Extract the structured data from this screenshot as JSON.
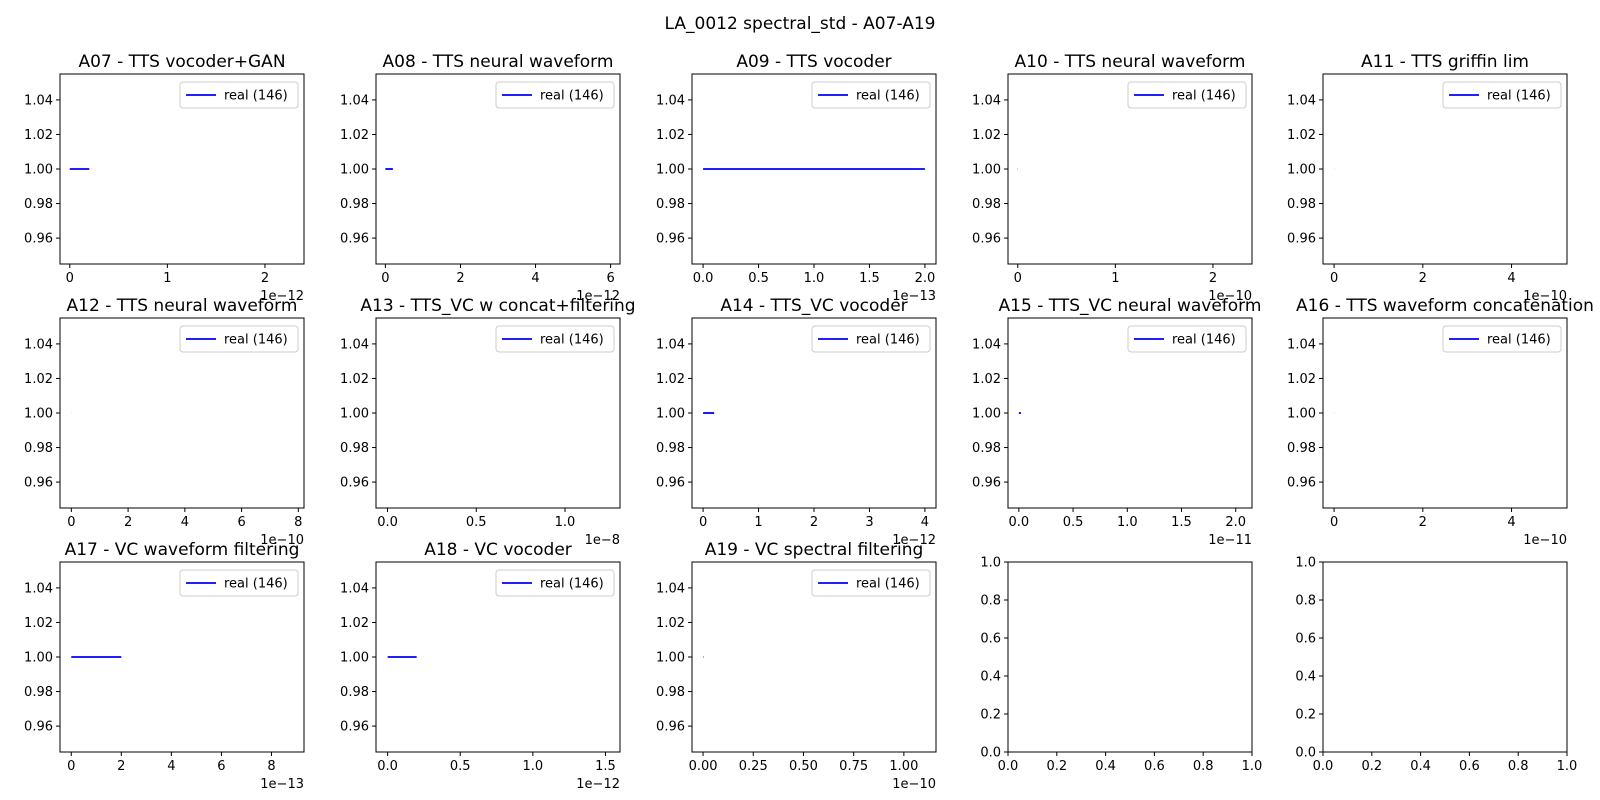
{
  "suptitle": "LA_0012 spectral_std - A07-A19",
  "colors": {
    "series": "#0000ff",
    "axis": "#000000",
    "legend_border": "#cccccc"
  },
  "chart_data": [
    {
      "type": "line",
      "title": "A07 - TTS vocoder+GAN",
      "legend": "real (146)",
      "series": [
        {
          "name": "real (146)",
          "x": [
            0,
            2e-13
          ],
          "y": [
            1.0,
            1.0
          ]
        }
      ],
      "xlim": [
        -1e-13,
        2.4e-12
      ],
      "ylim": [
        0.945,
        1.055
      ],
      "xticks": [
        0,
        1,
        2
      ],
      "xtick_labels": [
        "0",
        "1",
        "2"
      ],
      "xscale": 1e-12,
      "offset_label": "1e−12",
      "yticks": [
        0.96,
        0.98,
        1.0,
        1.02,
        1.04
      ],
      "ytick_labels": [
        "0.96",
        "0.98",
        "1.00",
        "1.02",
        "1.04"
      ]
    },
    {
      "type": "line",
      "title": "A08 - TTS neural waveform",
      "legend": "real (146)",
      "series": [
        {
          "name": "real (146)",
          "x": [
            0,
            2e-13
          ],
          "y": [
            1.0,
            1.0
          ]
        }
      ],
      "xlim": [
        -2.5e-13,
        6.25e-12
      ],
      "ylim": [
        0.945,
        1.055
      ],
      "xticks": [
        0,
        2,
        4,
        6
      ],
      "xtick_labels": [
        "0",
        "2",
        "4",
        "6"
      ],
      "xscale": 1e-12,
      "offset_label": "1e−12",
      "yticks": [
        0.96,
        0.98,
        1.0,
        1.02,
        1.04
      ],
      "ytick_labels": [
        "0.96",
        "0.98",
        "1.00",
        "1.02",
        "1.04"
      ]
    },
    {
      "type": "line",
      "title": "A09 - TTS vocoder",
      "legend": "real (146)",
      "series": [
        {
          "name": "real (146)",
          "x": [
            0,
            2e-13
          ],
          "y": [
            1.0,
            1.0
          ]
        }
      ],
      "xlim": [
        -1e-14,
        2.1e-13
      ],
      "ylim": [
        0.945,
        1.055
      ],
      "xticks": [
        0,
        0.5,
        1,
        1.5,
        2
      ],
      "xtick_labels": [
        "0.0",
        "0.5",
        "1.0",
        "1.5",
        "2.0"
      ],
      "xscale": 1e-13,
      "offset_label": "1e−13",
      "yticks": [
        0.96,
        0.98,
        1.0,
        1.02,
        1.04
      ],
      "ytick_labels": [
        "0.96",
        "0.98",
        "1.00",
        "1.02",
        "1.04"
      ]
    },
    {
      "type": "line",
      "title": "A10 - TTS neural waveform",
      "legend": "real (146)",
      "series": [
        {
          "name": "real (146)",
          "x": [
            0,
            2e-13
          ],
          "y": [
            1.0,
            1.0
          ]
        }
      ],
      "xlim": [
        -1e-11,
        2.4e-10
      ],
      "ylim": [
        0.945,
        1.055
      ],
      "xticks": [
        0,
        1,
        2
      ],
      "xtick_labels": [
        "0",
        "1",
        "2"
      ],
      "xscale": 1e-10,
      "offset_label": "1e−10",
      "yticks": [
        0.96,
        0.98,
        1.0,
        1.02,
        1.04
      ],
      "ytick_labels": [
        "0.96",
        "0.98",
        "1.00",
        "1.02",
        "1.04"
      ]
    },
    {
      "type": "line",
      "title": "A11 - TTS griffin lim",
      "legend": "real (146)",
      "series": [
        {
          "name": "real (146)",
          "x": [
            0,
            2e-13
          ],
          "y": [
            1.0,
            1.0
          ]
        }
      ],
      "xlim": [
        -2.5e-11,
        5.25e-10
      ],
      "ylim": [
        0.945,
        1.055
      ],
      "xticks": [
        0,
        2,
        4
      ],
      "xtick_labels": [
        "0",
        "2",
        "4"
      ],
      "xscale": 1e-10,
      "offset_label": "1e−10",
      "yticks": [
        0.96,
        0.98,
        1.0,
        1.02,
        1.04
      ],
      "ytick_labels": [
        "0.96",
        "0.98",
        "1.00",
        "1.02",
        "1.04"
      ]
    },
    {
      "type": "line",
      "title": "A12 - TTS neural waveform",
      "legend": "real (146)",
      "series": [
        {
          "name": "real (146)",
          "x": [
            0,
            2e-13
          ],
          "y": [
            1.0,
            1.0
          ]
        }
      ],
      "xlim": [
        -4e-11,
        8.2e-10
      ],
      "ylim": [
        0.945,
        1.055
      ],
      "xticks": [
        0,
        2,
        4,
        6,
        8
      ],
      "xtick_labels": [
        "0",
        "2",
        "4",
        "6",
        "8"
      ],
      "xscale": 1e-10,
      "offset_label": "1e−10",
      "yticks": [
        0.96,
        0.98,
        1.0,
        1.02,
        1.04
      ],
      "ytick_labels": [
        "0.96",
        "0.98",
        "1.00",
        "1.02",
        "1.04"
      ]
    },
    {
      "type": "line",
      "title": "A13 - TTS_VC w concat+filtering",
      "legend": "real (146)",
      "series": [
        {
          "name": "real (146)",
          "x": [
            0,
            2e-13
          ],
          "y": [
            1.0,
            1.0
          ]
        }
      ],
      "xlim": [
        -6.5e-10,
        1.31e-08
      ],
      "ylim": [
        0.945,
        1.055
      ],
      "xticks": [
        0,
        0.5,
        1
      ],
      "xtick_labels": [
        "0.0",
        "0.5",
        "1.0"
      ],
      "xscale": 1e-08,
      "offset_label": "1e−8",
      "yticks": [
        0.96,
        0.98,
        1.0,
        1.02,
        1.04
      ],
      "ytick_labels": [
        "0.96",
        "0.98",
        "1.00",
        "1.02",
        "1.04"
      ]
    },
    {
      "type": "line",
      "title": "A14 - TTS_VC vocoder",
      "legend": "real (146)",
      "series": [
        {
          "name": "real (146)",
          "x": [
            0,
            2e-13
          ],
          "y": [
            1.0,
            1.0
          ]
        }
      ],
      "xlim": [
        -2e-13,
        4.2e-12
      ],
      "ylim": [
        0.945,
        1.055
      ],
      "xticks": [
        0,
        1,
        2,
        3,
        4
      ],
      "xtick_labels": [
        "0",
        "1",
        "2",
        "3",
        "4"
      ],
      "xscale": 1e-12,
      "offset_label": "1e−12",
      "yticks": [
        0.96,
        0.98,
        1.0,
        1.02,
        1.04
      ],
      "ytick_labels": [
        "0.96",
        "0.98",
        "1.00",
        "1.02",
        "1.04"
      ]
    },
    {
      "type": "line",
      "title": "A15 - TTS_VC neural waveform",
      "legend": "real (146)",
      "series": [
        {
          "name": "real (146)",
          "x": [
            0,
            2e-13
          ],
          "y": [
            1.0,
            1.0
          ]
        }
      ],
      "xlim": [
        -1e-12,
        2.15e-11
      ],
      "ylim": [
        0.945,
        1.055
      ],
      "xticks": [
        0,
        0.5,
        1,
        1.5,
        2
      ],
      "xtick_labels": [
        "0.0",
        "0.5",
        "1.0",
        "1.5",
        "2.0"
      ],
      "xscale": 1e-11,
      "offset_label": "1e−11",
      "yticks": [
        0.96,
        0.98,
        1.0,
        1.02,
        1.04
      ],
      "ytick_labels": [
        "0.96",
        "0.98",
        "1.00",
        "1.02",
        "1.04"
      ]
    },
    {
      "type": "line",
      "title": "A16 - TTS waveform concatenation",
      "legend": "real (146)",
      "series": [
        {
          "name": "real (146)",
          "x": [
            0,
            2e-13
          ],
          "y": [
            1.0,
            1.0
          ]
        }
      ],
      "xlim": [
        -2.5e-11,
        5.25e-10
      ],
      "ylim": [
        0.945,
        1.055
      ],
      "xticks": [
        0,
        2,
        4
      ],
      "xtick_labels": [
        "0",
        "2",
        "4"
      ],
      "xscale": 1e-10,
      "offset_label": "1e−10",
      "yticks": [
        0.96,
        0.98,
        1.0,
        1.02,
        1.04
      ],
      "ytick_labels": [
        "0.96",
        "0.98",
        "1.00",
        "1.02",
        "1.04"
      ]
    },
    {
      "type": "line",
      "title": "A17 - VC waveform filtering",
      "legend": "real (146)",
      "series": [
        {
          "name": "real (146)",
          "x": [
            0,
            2e-13
          ],
          "y": [
            1.0,
            1.0
          ]
        }
      ],
      "xlim": [
        -4.5e-14,
        9.3e-13
      ],
      "ylim": [
        0.945,
        1.055
      ],
      "xticks": [
        0,
        2,
        4,
        6,
        8
      ],
      "xtick_labels": [
        "0",
        "2",
        "4",
        "6",
        "8"
      ],
      "xscale": 1e-13,
      "offset_label": "1e−13",
      "yticks": [
        0.96,
        0.98,
        1.0,
        1.02,
        1.04
      ],
      "ytick_labels": [
        "0.96",
        "0.98",
        "1.00",
        "1.02",
        "1.04"
      ]
    },
    {
      "type": "line",
      "title": "A18 - VC vocoder",
      "legend": "real (146)",
      "series": [
        {
          "name": "real (146)",
          "x": [
            0,
            2e-13
          ],
          "y": [
            1.0,
            1.0
          ]
        }
      ],
      "xlim": [
        -8e-14,
        1.6e-12
      ],
      "ylim": [
        0.945,
        1.055
      ],
      "xticks": [
        0,
        0.5,
        1,
        1.5
      ],
      "xtick_labels": [
        "0.0",
        "0.5",
        "1.0",
        "1.5"
      ],
      "xscale": 1e-12,
      "offset_label": "1e−12",
      "yticks": [
        0.96,
        0.98,
        1.0,
        1.02,
        1.04
      ],
      "ytick_labels": [
        "0.96",
        "0.98",
        "1.00",
        "1.02",
        "1.04"
      ]
    },
    {
      "type": "line",
      "title": "A19 - VC spectral filtering",
      "legend": "real (146)",
      "series": [
        {
          "name": "real (146)",
          "x": [
            0,
            2e-13
          ],
          "y": [
            1.0,
            1.0
          ]
        }
      ],
      "xlim": [
        -5.5e-12,
        1.16e-10
      ],
      "ylim": [
        0.945,
        1.055
      ],
      "xticks": [
        0,
        0.25,
        0.5,
        0.75,
        1
      ],
      "xtick_labels": [
        "0.00",
        "0.25",
        "0.50",
        "0.75",
        "1.00"
      ],
      "xscale": 1e-10,
      "offset_label": "1e−10",
      "yticks": [
        0.96,
        0.98,
        1.0,
        1.02,
        1.04
      ],
      "ytick_labels": [
        "0.96",
        "0.98",
        "1.00",
        "1.02",
        "1.04"
      ]
    },
    {
      "type": "line",
      "title": "",
      "legend": "",
      "series": [],
      "xlim": [
        0,
        1
      ],
      "ylim": [
        0,
        1
      ],
      "xticks": [
        0,
        0.2,
        0.4,
        0.6,
        0.8,
        1
      ],
      "xtick_labels": [
        "0.0",
        "0.2",
        "0.4",
        "0.6",
        "0.8",
        "1.0"
      ],
      "xscale": 1,
      "offset_label": "",
      "yticks": [
        0,
        0.2,
        0.4,
        0.6,
        0.8,
        1
      ],
      "ytick_labels": [
        "0.0",
        "0.2",
        "0.4",
        "0.6",
        "0.8",
        "1.0"
      ]
    },
    {
      "type": "line",
      "title": "",
      "legend": "",
      "series": [],
      "xlim": [
        0,
        1
      ],
      "ylim": [
        0,
        1
      ],
      "xticks": [
        0,
        0.2,
        0.4,
        0.6,
        0.8,
        1
      ],
      "xtick_labels": [
        "0.0",
        "0.2",
        "0.4",
        "0.6",
        "0.8",
        "1.0"
      ],
      "xscale": 1,
      "offset_label": "",
      "yticks": [
        0,
        0.2,
        0.4,
        0.6,
        0.8,
        1
      ],
      "ytick_labels": [
        "0.0",
        "0.2",
        "0.4",
        "0.6",
        "0.8",
        "1.0"
      ]
    }
  ]
}
